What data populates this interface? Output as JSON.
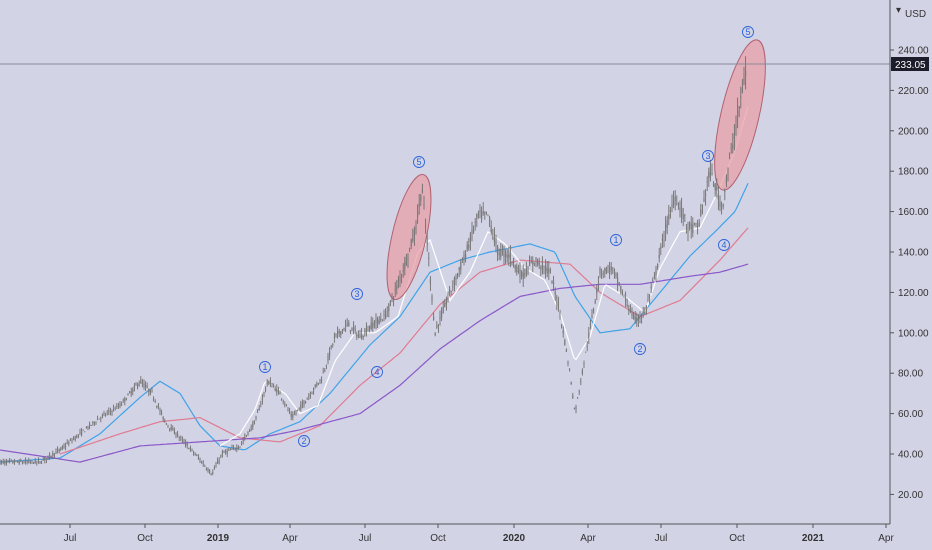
{
  "chart_data": {
    "type": "candlestick",
    "currency": "USD",
    "y_axis": {
      "range": [
        10,
        260
      ],
      "ticks": [
        20,
        40,
        60,
        80,
        100,
        120,
        140,
        160,
        180,
        200,
        220,
        240
      ],
      "tick_labels": [
        "20.00",
        "40.00",
        "60.00",
        "80.00",
        "100.00",
        "120.00",
        "140.00",
        "160.00",
        "180.00",
        "200.00",
        "220.00",
        "240.00"
      ],
      "position": "right"
    },
    "x_axis": {
      "tick_labels": [
        {
          "label": "Jul",
          "bold": false
        },
        {
          "label": "Oct",
          "bold": false
        },
        {
          "label": "2019",
          "bold": true
        },
        {
          "label": "Apr",
          "bold": false
        },
        {
          "label": "Jul",
          "bold": false
        },
        {
          "label": "Oct",
          "bold": false
        },
        {
          "label": "2020",
          "bold": true
        },
        {
          "label": "Apr",
          "bold": false
        },
        {
          "label": "Jul",
          "bold": false
        },
        {
          "label": "Oct",
          "bold": false
        },
        {
          "label": "2021",
          "bold": true
        },
        {
          "label": "Apr",
          "bold": false
        }
      ]
    },
    "price_marker": {
      "label": "233.05",
      "value": 233.05
    },
    "price_anchors": [
      [
        0,
        36
      ],
      [
        40,
        36
      ],
      [
        60,
        42
      ],
      [
        80,
        50
      ],
      [
        100,
        58
      ],
      [
        120,
        64
      ],
      [
        140,
        76
      ],
      [
        152,
        70
      ],
      [
        165,
        56
      ],
      [
        180,
        48
      ],
      [
        195,
        40
      ],
      [
        212,
        30
      ],
      [
        222,
        40
      ],
      [
        240,
        44
      ],
      [
        255,
        56
      ],
      [
        268,
        76
      ],
      [
        280,
        70
      ],
      [
        292,
        58
      ],
      [
        305,
        66
      ],
      [
        322,
        78
      ],
      [
        335,
        98
      ],
      [
        348,
        104
      ],
      [
        360,
        98
      ],
      [
        372,
        104
      ],
      [
        385,
        108
      ],
      [
        395,
        120
      ],
      [
        405,
        134
      ],
      [
        415,
        150
      ],
      [
        422,
        172
      ],
      [
        428,
        140
      ],
      [
        435,
        100
      ],
      [
        450,
        120
      ],
      [
        465,
        138
      ],
      [
        478,
        158
      ],
      [
        488,
        158
      ],
      [
        498,
        140
      ],
      [
        510,
        138
      ],
      [
        522,
        128
      ],
      [
        535,
        136
      ],
      [
        550,
        130
      ],
      [
        560,
        110
      ],
      [
        570,
        80
      ],
      [
        575,
        60
      ],
      [
        585,
        88
      ],
      [
        600,
        130
      ],
      [
        612,
        132
      ],
      [
        622,
        120
      ],
      [
        635,
        106
      ],
      [
        645,
        110
      ],
      [
        655,
        128
      ],
      [
        665,
        150
      ],
      [
        675,
        168
      ],
      [
        688,
        152
      ],
      [
        698,
        152
      ],
      [
        710,
        180
      ],
      [
        722,
        162
      ],
      [
        730,
        186
      ],
      [
        738,
        208
      ],
      [
        743,
        222
      ],
      [
        747,
        233
      ]
    ],
    "moving_averages": [
      {
        "color": "#3fa3e8",
        "anchors": [
          [
            0,
            36
          ],
          [
            60,
            38
          ],
          [
            100,
            50
          ],
          [
            140,
            68
          ],
          [
            160,
            76
          ],
          [
            180,
            70
          ],
          [
            200,
            54
          ],
          [
            220,
            44
          ],
          [
            245,
            42
          ],
          [
            270,
            50
          ],
          [
            300,
            56
          ],
          [
            330,
            70
          ],
          [
            370,
            94
          ],
          [
            400,
            108
          ],
          [
            430,
            130
          ],
          [
            460,
            136
          ],
          [
            490,
            140
          ],
          [
            530,
            144
          ],
          [
            555,
            140
          ],
          [
            575,
            118
          ],
          [
            600,
            100
          ],
          [
            630,
            102
          ],
          [
            660,
            120
          ],
          [
            690,
            138
          ],
          [
            715,
            150
          ],
          [
            735,
            160
          ],
          [
            748,
            174
          ]
        ]
      },
      {
        "color": "#e07b90",
        "anchors": [
          [
            60,
            40
          ],
          [
            120,
            50
          ],
          [
            160,
            56
          ],
          [
            200,
            58
          ],
          [
            240,
            48
          ],
          [
            280,
            46
          ],
          [
            320,
            54
          ],
          [
            360,
            74
          ],
          [
            400,
            90
          ],
          [
            440,
            114
          ],
          [
            480,
            130
          ],
          [
            520,
            136
          ],
          [
            570,
            134
          ],
          [
            600,
            120
          ],
          [
            640,
            108
          ],
          [
            680,
            116
          ],
          [
            720,
            136
          ],
          [
            748,
            152
          ]
        ]
      },
      {
        "color": "#8a58c8",
        "anchors": [
          [
            0,
            42
          ],
          [
            80,
            36
          ],
          [
            140,
            44
          ],
          [
            200,
            46
          ],
          [
            260,
            48
          ],
          [
            300,
            52
          ],
          [
            360,
            60
          ],
          [
            400,
            74
          ],
          [
            440,
            92
          ],
          [
            480,
            106
          ],
          [
            520,
            118
          ],
          [
            560,
            122
          ],
          [
            600,
            124
          ],
          [
            640,
            124
          ],
          [
            690,
            128
          ],
          [
            720,
            130
          ],
          [
            748,
            134
          ]
        ]
      },
      {
        "color": "#ffffff",
        "anchors": [
          [
            220,
            44
          ],
          [
            240,
            50
          ],
          [
            255,
            62
          ],
          [
            265,
            76
          ],
          [
            285,
            70
          ],
          [
            300,
            60
          ],
          [
            318,
            64
          ],
          [
            335,
            86
          ],
          [
            355,
            100
          ],
          [
            375,
            100
          ],
          [
            398,
            108
          ],
          [
            418,
            140
          ],
          [
            430,
            146
          ],
          [
            450,
            116
          ],
          [
            470,
            130
          ],
          [
            488,
            150
          ],
          [
            505,
            144
          ],
          [
            525,
            132
          ],
          [
            545,
            126
          ],
          [
            560,
            110
          ],
          [
            575,
            86
          ],
          [
            590,
            98
          ],
          [
            605,
            124
          ],
          [
            625,
            118
          ],
          [
            645,
            110
          ],
          [
            660,
            132
          ],
          [
            680,
            150
          ],
          [
            700,
            152
          ],
          [
            718,
            170
          ],
          [
            735,
            190
          ],
          [
            748,
            212
          ]
        ]
      }
    ],
    "ellipses": [
      {
        "label": "cycle-1",
        "fill": "#e8a0a8"
      },
      {
        "label": "cycle-2",
        "fill": "#e8a0a8"
      }
    ],
    "wave_labels": [
      "1",
      "2",
      "3",
      "4",
      "5",
      "1",
      "2",
      "3",
      "4",
      "5"
    ]
  }
}
